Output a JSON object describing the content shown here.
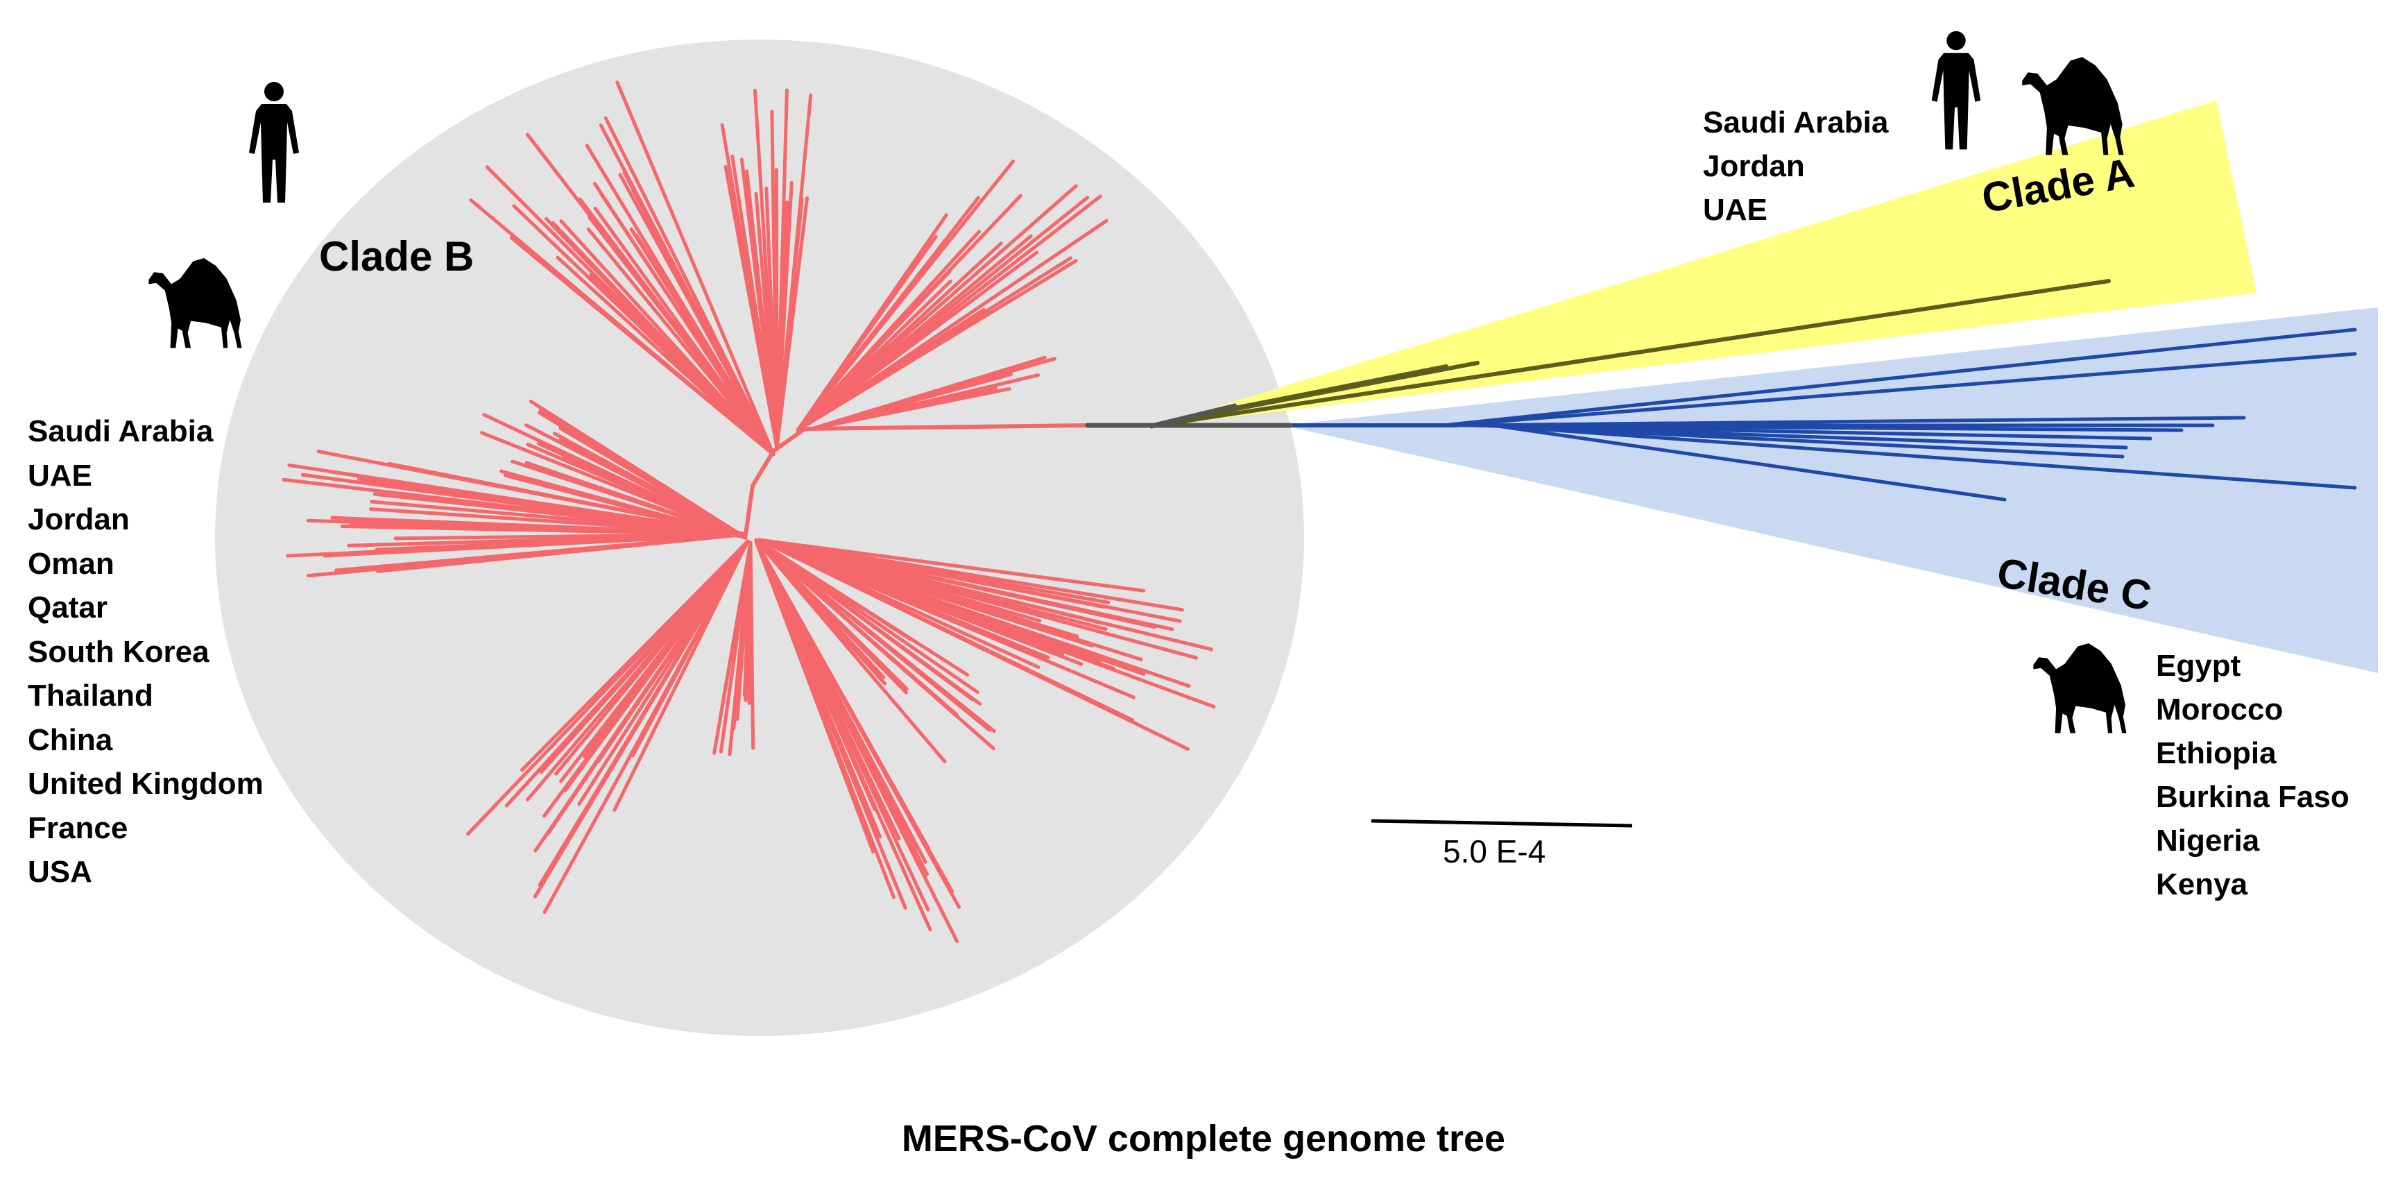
{
  "title": "MERS-CoV complete genome tree",
  "scale_bar": {
    "label": "5.0 E-4",
    "value": 0.0005
  },
  "clades": [
    {
      "id": "B",
      "label": "Clade B",
      "color": "#f4676b",
      "shade": "#e3e3e3",
      "hosts": [
        "human-icon",
        "camel-icon"
      ],
      "countries": [
        "Saudi Arabia",
        "UAE",
        "Jordan",
        "Oman",
        "Qatar",
        "South Korea",
        "Thailand",
        "China",
        "United Kingdom",
        "France",
        "USA"
      ]
    },
    {
      "id": "A",
      "label": "Clade A",
      "color": "#5c5c1e",
      "shade": "#ffff80",
      "hosts": [
        "human-icon",
        "camel-icon"
      ],
      "countries": [
        "Saudi Arabia",
        "Jordan",
        "UAE"
      ]
    },
    {
      "id": "C",
      "label": "Clade C",
      "color": "#1f48a8",
      "shade": "#c9d9f2",
      "hosts": [
        "camel-icon"
      ],
      "countries": [
        "Egypt",
        "Morocco",
        "Ethiopia",
        "Burkina Faso",
        "Nigeria",
        "Kenya"
      ]
    }
  ],
  "stem_color": "#555555"
}
